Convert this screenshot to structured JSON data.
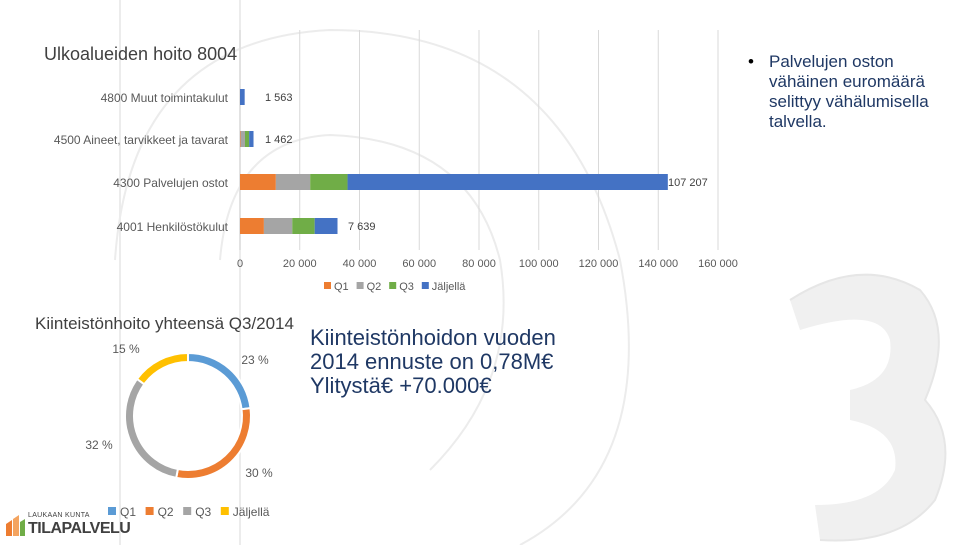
{
  "colors": {
    "Q1": "#5b9bd5",
    "Q2": "#ed7d31",
    "Q3": "#a5a5a5",
    "Jäljellä": "#ffc000",
    "bar_Q1": "#ed7d31",
    "bar_Q2": "#a5a5a5",
    "bar_Q3": "#70ad47",
    "bar_Jäljellä": "#4472c4",
    "text_dark": "#1f3864",
    "label": "#595959"
  },
  "chart_data": [
    {
      "type": "bar",
      "orientation": "horizontal",
      "stacked": true,
      "title": "Ulkoalueiden hoito 8004",
      "categories": [
        "4800 Muut toimintakulut",
        "4500 Aineet, tarvikkeet ja tavarat",
        "4300 Palvelujen ostot",
        "4001 Henkilöstökulut"
      ],
      "series": [
        {
          "name": "Q1",
          "values": [
            0,
            200,
            12000,
            8000
          ]
        },
        {
          "name": "Q2",
          "values": [
            0,
            1462,
            11500,
            9500
          ]
        },
        {
          "name": "Q3",
          "values": [
            0,
            1400,
            12500,
            7500
          ]
        },
        {
          "name": "Jäljellä",
          "values": [
            1563,
            1462,
            107207,
            7639
          ]
        }
      ],
      "data_labels": [
        "1 563",
        "1 462",
        "107 207",
        "7 639"
      ],
      "xlim": [
        0,
        160000
      ],
      "xticks": [
        0,
        20000,
        40000,
        60000,
        80000,
        100000,
        120000,
        140000,
        160000
      ],
      "xtick_labels": [
        "0",
        "20 000",
        "40 000",
        "60 000",
        "80 000",
        "100 000",
        "120 000",
        "140 000",
        "160 000"
      ],
      "legend": [
        "Q1",
        "Q2",
        "Q3",
        "Jäljellä"
      ],
      "legend_position": "bottom",
      "grid": true
    },
    {
      "type": "pie",
      "donut": true,
      "title": "Kiinteistönhoito yhteensä Q3/2014",
      "labels": [
        "Q1",
        "Q2",
        "Q3",
        "Jäljellä"
      ],
      "values": [
        23,
        30,
        32,
        15
      ],
      "value_labels": [
        "23 %",
        "30 %",
        "32 %",
        "15 %"
      ],
      "legend": [
        "Q1",
        "Q2",
        "Q3",
        "Jäljellä"
      ],
      "legend_position": "bottom"
    }
  ],
  "notes": [
    "Palvelujen oston vähäinen euromäärä selittyy vähälumisella talvella."
  ],
  "forecast": {
    "line1": "Kiinteistönhoidon vuoden",
    "line2": "2014 ennuste on 0,78M€",
    "line3": "Ylitystä€ +70.000€"
  },
  "watermark": {
    "letters": "Q3"
  },
  "logo": {
    "top_text": "LAUKAAN KUNTA",
    "main_text": "TILAPALVELU"
  }
}
